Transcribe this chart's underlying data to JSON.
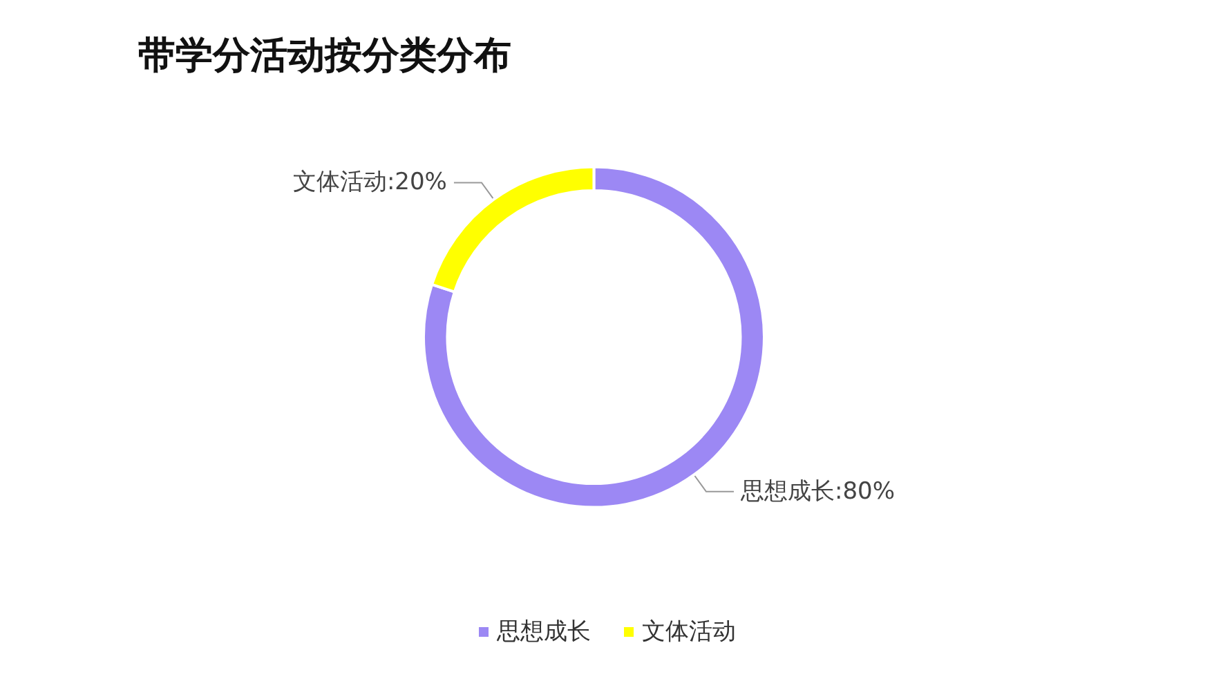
{
  "chart_data": {
    "type": "donut",
    "title": "带学分活动按分类分布",
    "categories": [
      "思想成长",
      "文体活动"
    ],
    "values": [
      80,
      20
    ],
    "colors": [
      "#9c88f4",
      "#ffff00"
    ],
    "value_labels": [
      "思想成长:80%",
      "文体活动:20%"
    ],
    "legend": "bottom"
  }
}
